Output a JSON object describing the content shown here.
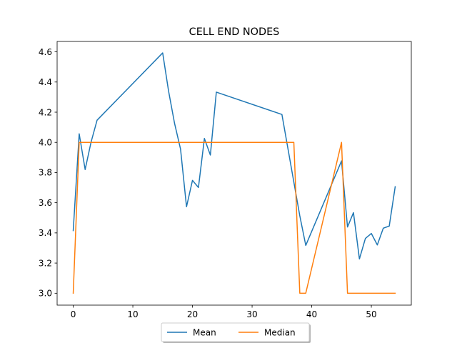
{
  "chart_data": {
    "type": "line",
    "title": "CELL END NODES",
    "xlabel": "",
    "ylabel": "",
    "xlim": [
      -2.7,
      56.7
    ],
    "ylim": [
      2.921,
      4.669
    ],
    "xticks": [
      0,
      10,
      20,
      30,
      40,
      50
    ],
    "yticks": [
      3.0,
      3.2,
      3.4,
      3.6,
      3.8,
      4.0,
      4.2,
      4.4,
      4.6
    ],
    "ytick_labels": [
      "3.0",
      "3.2",
      "3.4",
      "3.6",
      "3.8",
      "4.0",
      "4.2",
      "4.4",
      "4.6"
    ],
    "grid": false,
    "legend_position": "bottom-center",
    "series": [
      {
        "name": "Mean",
        "color": "#1f77b4",
        "x": [
          0,
          1,
          2,
          3,
          4,
          15,
          16,
          17,
          18,
          19,
          20,
          21,
          22,
          23,
          24,
          35,
          38,
          39,
          45,
          46,
          47,
          48,
          49,
          50,
          51,
          52,
          53,
          54
        ],
        "y": [
          3.415,
          4.057,
          3.82,
          4.003,
          4.147,
          4.593,
          4.338,
          4.125,
          3.955,
          3.573,
          3.748,
          3.701,
          4.026,
          3.916,
          4.333,
          4.185,
          3.513,
          3.317,
          3.877,
          3.439,
          3.534,
          3.227,
          3.363,
          3.396,
          3.32,
          3.431,
          3.445,
          3.706
        ]
      },
      {
        "name": "Median",
        "color": "#ff7f0e",
        "x": [
          0,
          1,
          37,
          38,
          39,
          45,
          46,
          54
        ],
        "y": [
          3.0,
          4.0,
          4.0,
          3.0,
          3.0,
          4.0,
          3.0,
          3.0
        ]
      }
    ]
  }
}
